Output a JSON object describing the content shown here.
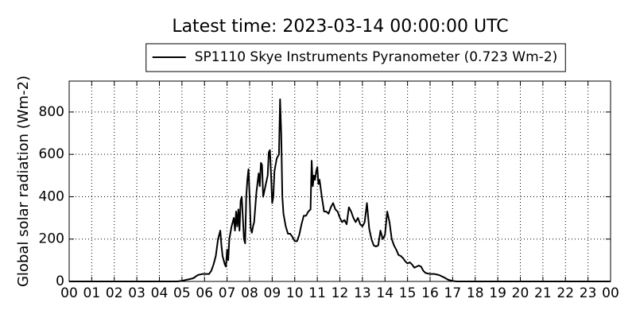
{
  "chart_data": {
    "type": "line",
    "title": "Latest time: 2023-03-14 00:00:00 UTC",
    "y_label": "Global solar radiation (Wm-2)",
    "grid": true,
    "legend": "upper center",
    "x": [
      0,
      4.8,
      5,
      5.3,
      5.5,
      5.7,
      5.9,
      6.2,
      6.3,
      6.4,
      6.5,
      6.6,
      6.7,
      6.75,
      6.8,
      6.9,
      6.95,
      7,
      7.05,
      7.1,
      7.2,
      7.3,
      7.35,
      7.4,
      7.45,
      7.5,
      7.55,
      7.6,
      7.65,
      7.7,
      7.75,
      7.8,
      7.85,
      7.9,
      7.95,
      8,
      8.05,
      8.1,
      8.15,
      8.2,
      8.3,
      8.4,
      8.45,
      8.5,
      8.55,
      8.6,
      8.7,
      8.8,
      8.85,
      8.9,
      8.95,
      9,
      9.05,
      9.1,
      9.2,
      9.3,
      9.35,
      9.4,
      9.45,
      9.5,
      9.6,
      9.7,
      9.8,
      9.9,
      10,
      10.1,
      10.2,
      10.3,
      10.4,
      10.5,
      10.6,
      10.7,
      10.75,
      10.8,
      10.85,
      10.9,
      10.95,
      11,
      11.05,
      11.1,
      11.2,
      11.3,
      11.4,
      11.5,
      11.6,
      11.7,
      11.8,
      11.9,
      12,
      12.1,
      12.2,
      12.3,
      12.4,
      12.5,
      12.6,
      12.7,
      12.8,
      12.9,
      13,
      13.1,
      13.2,
      13.3,
      13.4,
      13.5,
      13.6,
      13.7,
      13.8,
      13.9,
      14,
      14.1,
      14.2,
      14.3,
      14.4,
      14.5,
      14.6,
      14.7,
      14.8,
      14.9,
      15,
      15.1,
      15.2,
      15.3,
      15.4,
      15.5,
      15.6,
      15.7,
      15.8,
      16,
      16.2,
      16.4,
      16.6,
      16.8,
      17,
      17.2,
      24
    ],
    "series": [
      {
        "name": "SP1110 Skye Instruments Pyranometer (0.723 Wm-2)",
        "color": "#000000",
        "values": [
          0,
          0,
          3,
          10,
          15,
          30,
          35,
          35,
          50,
          80,
          120,
          200,
          240,
          170,
          120,
          80,
          70,
          150,
          100,
          200,
          260,
          300,
          240,
          330,
          260,
          340,
          240,
          380,
          400,
          300,
          200,
          180,
          400,
          480,
          530,
          400,
          250,
          230,
          260,
          280,
          420,
          510,
          450,
          560,
          550,
          400,
          450,
          500,
          610,
          620,
          500,
          370,
          400,
          520,
          580,
          600,
          860,
          700,
          400,
          320,
          260,
          225,
          225,
          210,
          190,
          190,
          220,
          270,
          310,
          310,
          330,
          340,
          570,
          450,
          500,
          480,
          520,
          540,
          460,
          480,
          400,
          330,
          330,
          320,
          350,
          370,
          340,
          330,
          300,
          280,
          290,
          270,
          350,
          330,
          300,
          280,
          300,
          270,
          260,
          280,
          370,
          250,
          200,
          170,
          165,
          170,
          240,
          200,
          220,
          330,
          280,
          200,
          170,
          150,
          125,
          120,
          110,
          95,
          85,
          90,
          80,
          65,
          70,
          75,
          70,
          50,
          40,
          35,
          35,
          30,
          20,
          8,
          2,
          0,
          0
        ]
      }
    ],
    "xlim": [
      0,
      24
    ],
    "xticks": [
      {
        "value": 0,
        "label": "00"
      },
      {
        "value": 1,
        "label": "01"
      },
      {
        "value": 2,
        "label": "02"
      },
      {
        "value": 3,
        "label": "03"
      },
      {
        "value": 4,
        "label": "04"
      },
      {
        "value": 5,
        "label": "05"
      },
      {
        "value": 6,
        "label": "06"
      },
      {
        "value": 7,
        "label": "07"
      },
      {
        "value": 8,
        "label": "08"
      },
      {
        "value": 9,
        "label": "09"
      },
      10,
      11,
      12,
      13,
      14,
      15,
      16,
      17,
      18,
      19,
      20,
      21,
      22,
      23,
      {
        "value": 24,
        "label": "00"
      }
    ],
    "ylim": [
      0,
      946
    ],
    "yticks": [
      0,
      200,
      400,
      600,
      800
    ]
  }
}
